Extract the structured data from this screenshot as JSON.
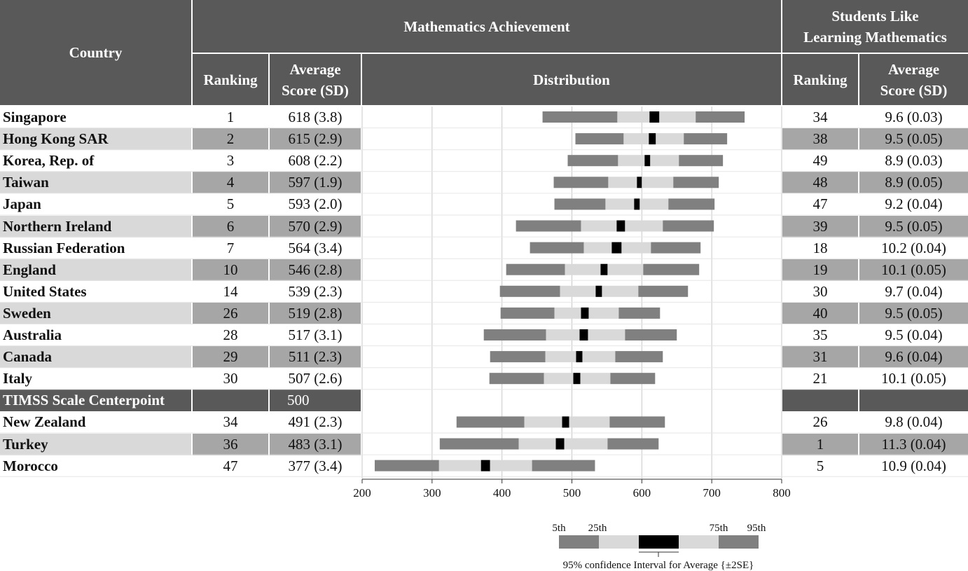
{
  "header": {
    "country": "Country",
    "math_achievement": "Mathematics Achievement",
    "ranking": "Ranking",
    "average_score_line1": "Average",
    "average_score_line2": "Score (SD)",
    "distribution": "Distribution",
    "students_like_line1": "Students Like",
    "students_like_line2": "Learning Mathematics",
    "like_ranking": "Ranking",
    "like_avg_line1": "Average",
    "like_avg_line2": "Score (SD)"
  },
  "colors": {
    "header_bg": "#595959",
    "row_light": "#d9d9d9",
    "row_mid": "#a6a6a6",
    "bar_outer": "#808080",
    "bar_inner": "#d9d9d9",
    "bar_ci": "#000000",
    "grid": "#c8c8c8"
  },
  "rows": [
    {
      "country": "Singapore",
      "rank": "1",
      "score": "618 (3.8)",
      "like_rank": "34",
      "like_score": "9.6 (0.03)"
    },
    {
      "country": "Hong Kong SAR",
      "rank": "2",
      "score": "615 (2.9)",
      "like_rank": "38",
      "like_score": "9.5 (0.05)"
    },
    {
      "country": "Korea, Rep. of",
      "rank": "3",
      "score": "608 (2.2)",
      "like_rank": "49",
      "like_score": "8.9 (0.03)"
    },
    {
      "country": "Taiwan",
      "rank": "4",
      "score": "597 (1.9)",
      "like_rank": "48",
      "like_score": "8.9 (0.05)"
    },
    {
      "country": "Japan",
      "rank": "5",
      "score": "593 (2.0)",
      "like_rank": "47",
      "like_score": "9.2 (0.04)"
    },
    {
      "country": "Northern Ireland",
      "rank": "6",
      "score": "570 (2.9)",
      "like_rank": "39",
      "like_score": "9.5 (0.05)"
    },
    {
      "country": "Russian Federation",
      "rank": "7",
      "score": "564 (3.4)",
      "like_rank": "18",
      "like_score": "10.2 (0.04)"
    },
    {
      "country": "England",
      "rank": "10",
      "score": "546 (2.8)",
      "like_rank": "19",
      "like_score": "10.1 (0.05)"
    },
    {
      "country": "United States",
      "rank": "14",
      "score": "539 (2.3)",
      "like_rank": "30",
      "like_score": "9.7 (0.04)"
    },
    {
      "country": "Sweden",
      "rank": "26",
      "score": "519 (2.8)",
      "like_rank": "40",
      "like_score": "9.5 (0.05)"
    },
    {
      "country": "Australia",
      "rank": "28",
      "score": "517 (3.1)",
      "like_rank": "35",
      "like_score": "9.5 (0.04)"
    },
    {
      "country": "Canada",
      "rank": "29",
      "score": "511 (2.3)",
      "like_rank": "31",
      "like_score": "9.6 (0.04)"
    },
    {
      "country": "Italy",
      "rank": "30",
      "score": "507 (2.6)",
      "like_rank": "21",
      "like_score": "10.1 (0.05)"
    },
    {
      "country": "TIMSS Scale Centerpoint",
      "rank": "",
      "score": "500",
      "like_rank": "",
      "like_score": "",
      "centerpoint": true
    },
    {
      "country": "New Zealand",
      "rank": "34",
      "score": "491 (2.3)",
      "like_rank": "26",
      "like_score": "9.8 (0.04)"
    },
    {
      "country": "Turkey",
      "rank": "36",
      "score": "483 (3.1)",
      "like_rank": "1",
      "like_score": "11.3 (0.04)"
    },
    {
      "country": "Morocco",
      "rank": "47",
      "score": "377 (3.4)",
      "like_rank": "5",
      "like_score": "10.9 (0.04)"
    }
  ],
  "chart_data": {
    "type": "bar",
    "xlim": [
      200,
      800
    ],
    "x_ticks": [
      "200",
      "300",
      "400",
      "500",
      "600",
      "700",
      "800"
    ],
    "grid": true,
    "series": [
      {
        "country": "Singapore",
        "p5": 458,
        "p25": 565,
        "ci_lo": 611,
        "ci_hi": 625,
        "p75": 677,
        "p95": 747
      },
      {
        "country": "Hong Kong SAR",
        "p5": 505,
        "p25": 574,
        "ci_lo": 610,
        "ci_hi": 620,
        "p75": 660,
        "p95": 722
      },
      {
        "country": "Korea, Rep. of",
        "p5": 494,
        "p25": 566,
        "ci_lo": 604,
        "ci_hi": 612,
        "p75": 653,
        "p95": 716
      },
      {
        "country": "Taiwan",
        "p5": 474,
        "p25": 552,
        "ci_lo": 593,
        "ci_hi": 600,
        "p75": 645,
        "p95": 710
      },
      {
        "country": "Japan",
        "p5": 475,
        "p25": 548,
        "ci_lo": 589,
        "ci_hi": 597,
        "p75": 638,
        "p95": 704
      },
      {
        "country": "Northern Ireland",
        "p5": 420,
        "p25": 513,
        "ci_lo": 564,
        "ci_hi": 576,
        "p75": 630,
        "p95": 703
      },
      {
        "country": "Russian Federation",
        "p5": 440,
        "p25": 517,
        "ci_lo": 557,
        "ci_hi": 571,
        "p75": 613,
        "p95": 684
      },
      {
        "country": "England",
        "p5": 406,
        "p25": 490,
        "ci_lo": 541,
        "ci_hi": 551,
        "p75": 602,
        "p95": 682
      },
      {
        "country": "United States",
        "p5": 397,
        "p25": 483,
        "ci_lo": 534,
        "ci_hi": 543,
        "p75": 595,
        "p95": 666
      },
      {
        "country": "Sweden",
        "p5": 398,
        "p25": 475,
        "ci_lo": 513,
        "ci_hi": 524,
        "p75": 567,
        "p95": 626
      },
      {
        "country": "Australia",
        "p5": 374,
        "p25": 463,
        "ci_lo": 511,
        "ci_hi": 523,
        "p75": 576,
        "p95": 650
      },
      {
        "country": "Canada",
        "p5": 383,
        "p25": 462,
        "ci_lo": 506,
        "ci_hi": 515,
        "p75": 562,
        "p95": 630
      },
      {
        "country": "Italy",
        "p5": 382,
        "p25": 460,
        "ci_lo": 502,
        "ci_hi": 512,
        "p75": 555,
        "p95": 619
      },
      {
        "country": "New Zealand",
        "p5": 335,
        "p25": 432,
        "ci_lo": 486,
        "ci_hi": 496,
        "p75": 554,
        "p95": 633
      },
      {
        "country": "Turkey",
        "p5": 311,
        "p25": 424,
        "ci_lo": 477,
        "ci_hi": 489,
        "p75": 551,
        "p95": 624
      },
      {
        "country": "Morocco",
        "p5": 218,
        "p25": 310,
        "ci_lo": 370,
        "ci_hi": 383,
        "p75": 443,
        "p95": 533
      }
    ],
    "legend": {
      "labels": [
        "5th",
        "25th",
        "75th",
        "95th"
      ],
      "ci_label": "95% confidence Interval for Average {±2SE}",
      "placement": "bottom-right"
    }
  }
}
